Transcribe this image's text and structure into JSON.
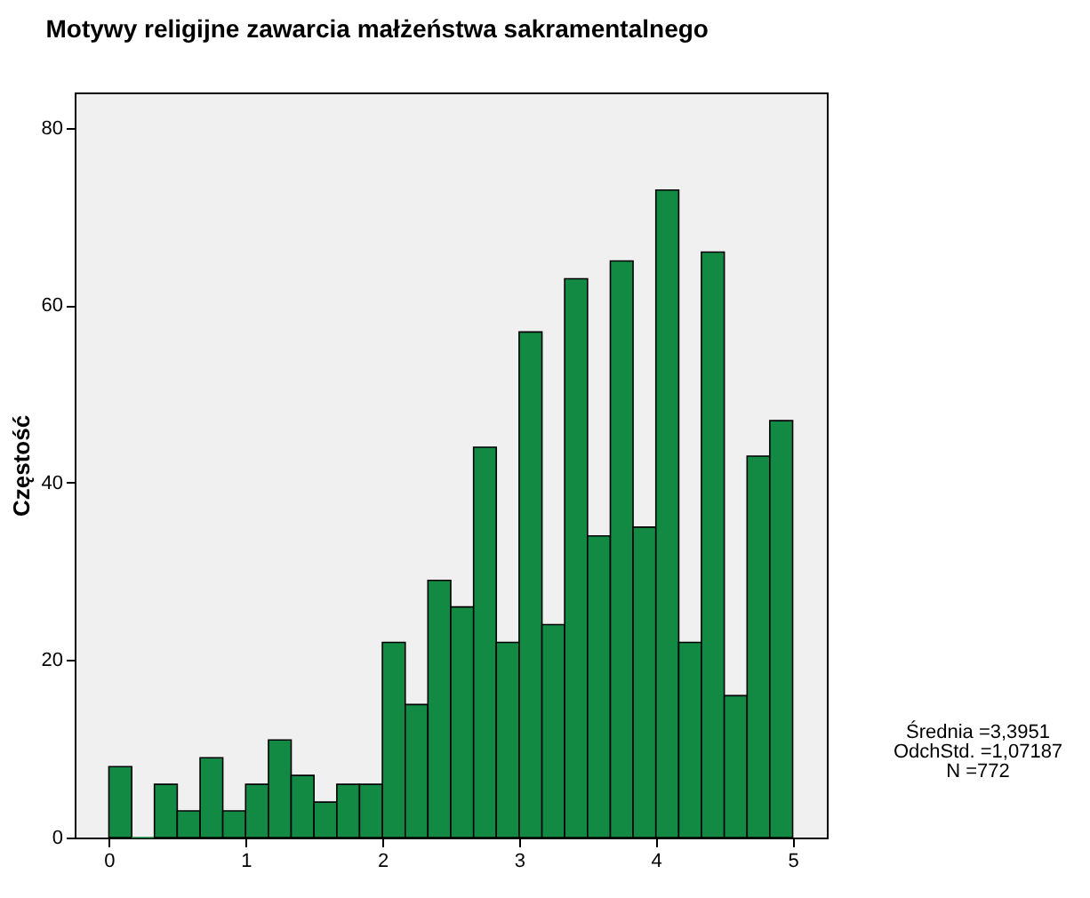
{
  "chart_data": {
    "type": "histogram",
    "title": "Motywy religijne zawarcia małżeństwa sakramentalnego",
    "ylabel": "Częstość",
    "bins": [
      0,
      0.167,
      0.333,
      0.5,
      0.667,
      0.833,
      1,
      1.167,
      1.333,
      1.5,
      1.667,
      1.833,
      2,
      2.167,
      2.333,
      2.5,
      2.667,
      2.833,
      3,
      3.167,
      3.333,
      3.5,
      3.667,
      3.833,
      4,
      4.167,
      4.333,
      4.5,
      4.667,
      4.833,
      5
    ],
    "values": [
      8,
      0,
      6,
      3,
      9,
      3,
      6,
      11,
      7,
      4,
      6,
      6,
      22,
      15,
      29,
      26,
      44,
      22,
      57,
      24,
      63,
      34,
      65,
      35,
      73,
      22,
      66,
      16,
      43,
      47
    ],
    "color": "#138a44",
    "xlim": [
      -0.25,
      5.25
    ],
    "ylim": [
      0,
      84
    ],
    "xticks": [
      0,
      1,
      2,
      3,
      4,
      5
    ],
    "yticks": [
      0,
      20,
      40,
      60,
      80
    ],
    "grid": false,
    "annotations": [
      "Średnia =3,3951",
      "OdchStd. =1,07187",
      "N =772"
    ]
  }
}
